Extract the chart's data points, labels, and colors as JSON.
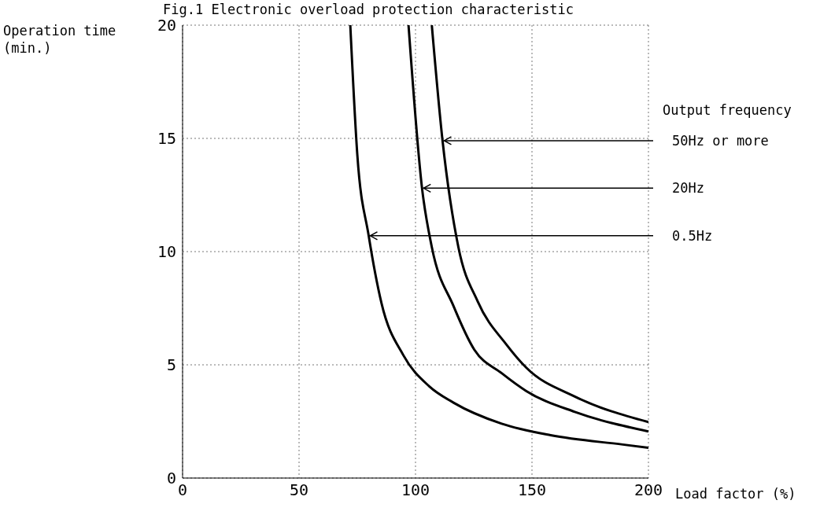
{
  "chart_data": {
    "type": "line",
    "title": "Fig.1 Electronic overload protection characteristic",
    "xlabel": "Load factor (%)",
    "ylabel": "Operation time (min.)",
    "xlim": [
      0,
      200
    ],
    "xticks": [
      0,
      50,
      100,
      150,
      200
    ],
    "ylim": [
      0,
      20
    ],
    "yticks": [
      0,
      5,
      10,
      15,
      20
    ],
    "grid": true,
    "marker": "none",
    "line_style": "solid",
    "series": [
      {
        "color": "#000000",
        "x": [
          107,
          111.5,
          118.4,
          126.7,
          139,
          147.6,
          168.4,
          200
        ],
        "values": [
          20,
          15,
          10.2,
          7.8,
          5.9,
          4.87,
          3.6,
          2.47
        ]
      },
      {
        "color": "#000000",
        "x": [
          97,
          102.8,
          107,
          116.3,
          125.3,
          137,
          147.6,
          168.4,
          200
        ],
        "values": [
          20,
          12.8,
          10.2,
          7.6,
          5.66,
          4.63,
          3.84,
          2.92,
          2.06
        ]
      },
      {
        "color": "#000000",
        "x": [
          72,
          75,
          79.9,
          85.4,
          94.8,
          105.9,
          116.3,
          137,
          158,
          189,
          200
        ],
        "values": [
          20,
          14.3,
          10.7,
          7.72,
          5.42,
          4.05,
          3.33,
          2.4,
          1.89,
          1.48,
          1.34
        ]
      }
    ],
    "annotations": [
      "Output frequency"
    ],
    "ref_lines": [
      {
        "axis": "y",
        "value": 14.9,
        "label": "50Hz or more",
        "color": "#000000",
        "line_style": "solid"
      },
      {
        "axis": "y",
        "value": 12.8,
        "label": "20Hz",
        "color": "#000000",
        "line_style": "solid"
      },
      {
        "axis": "y",
        "value": 10.7,
        "label": "0.5Hz",
        "color": "#000000",
        "line_style": "solid"
      }
    ]
  }
}
